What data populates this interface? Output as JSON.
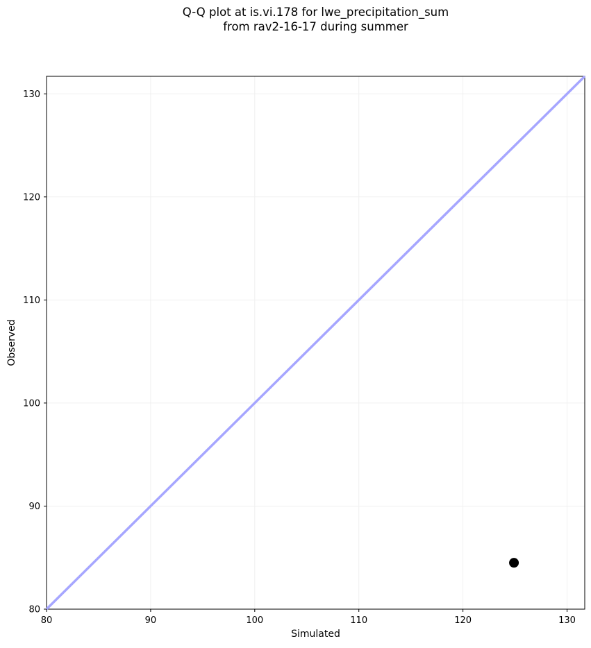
{
  "figure": {
    "title_line1": "Q-Q plot at is.vi.178 for lwe_precipitation_sum",
    "title_line2": "from rav2-16-17 during summer"
  },
  "chart_data": {
    "type": "scatter",
    "title": "Q-Q plot at is.vi.178 for lwe_precipitation_sum\nfrom rav2-16-17 during summer",
    "xlabel": "Simulated",
    "ylabel": "Observed",
    "xlim": [
      80,
      131.7
    ],
    "ylim": [
      80,
      131.7
    ],
    "xticks": [
      80,
      90,
      100,
      110,
      120,
      130
    ],
    "yticks": [
      80,
      90,
      100,
      110,
      120,
      130
    ],
    "grid": true,
    "grid_color": "#f0f0f0",
    "axis_color": "#000000",
    "legend": "none",
    "series": [
      {
        "name": "identity-reference-line",
        "kind": "line",
        "color": "#a6a6ff",
        "width": 3.5,
        "points": [
          {
            "x": 80,
            "y": 80
          },
          {
            "x": 131.7,
            "y": 131.7
          }
        ]
      },
      {
        "name": "observed-vs-simulated-quantiles",
        "kind": "scatter",
        "color": "#000000",
        "marker_radius": 7,
        "points": [
          {
            "x": 124.9,
            "y": 84.5
          }
        ]
      }
    ]
  }
}
